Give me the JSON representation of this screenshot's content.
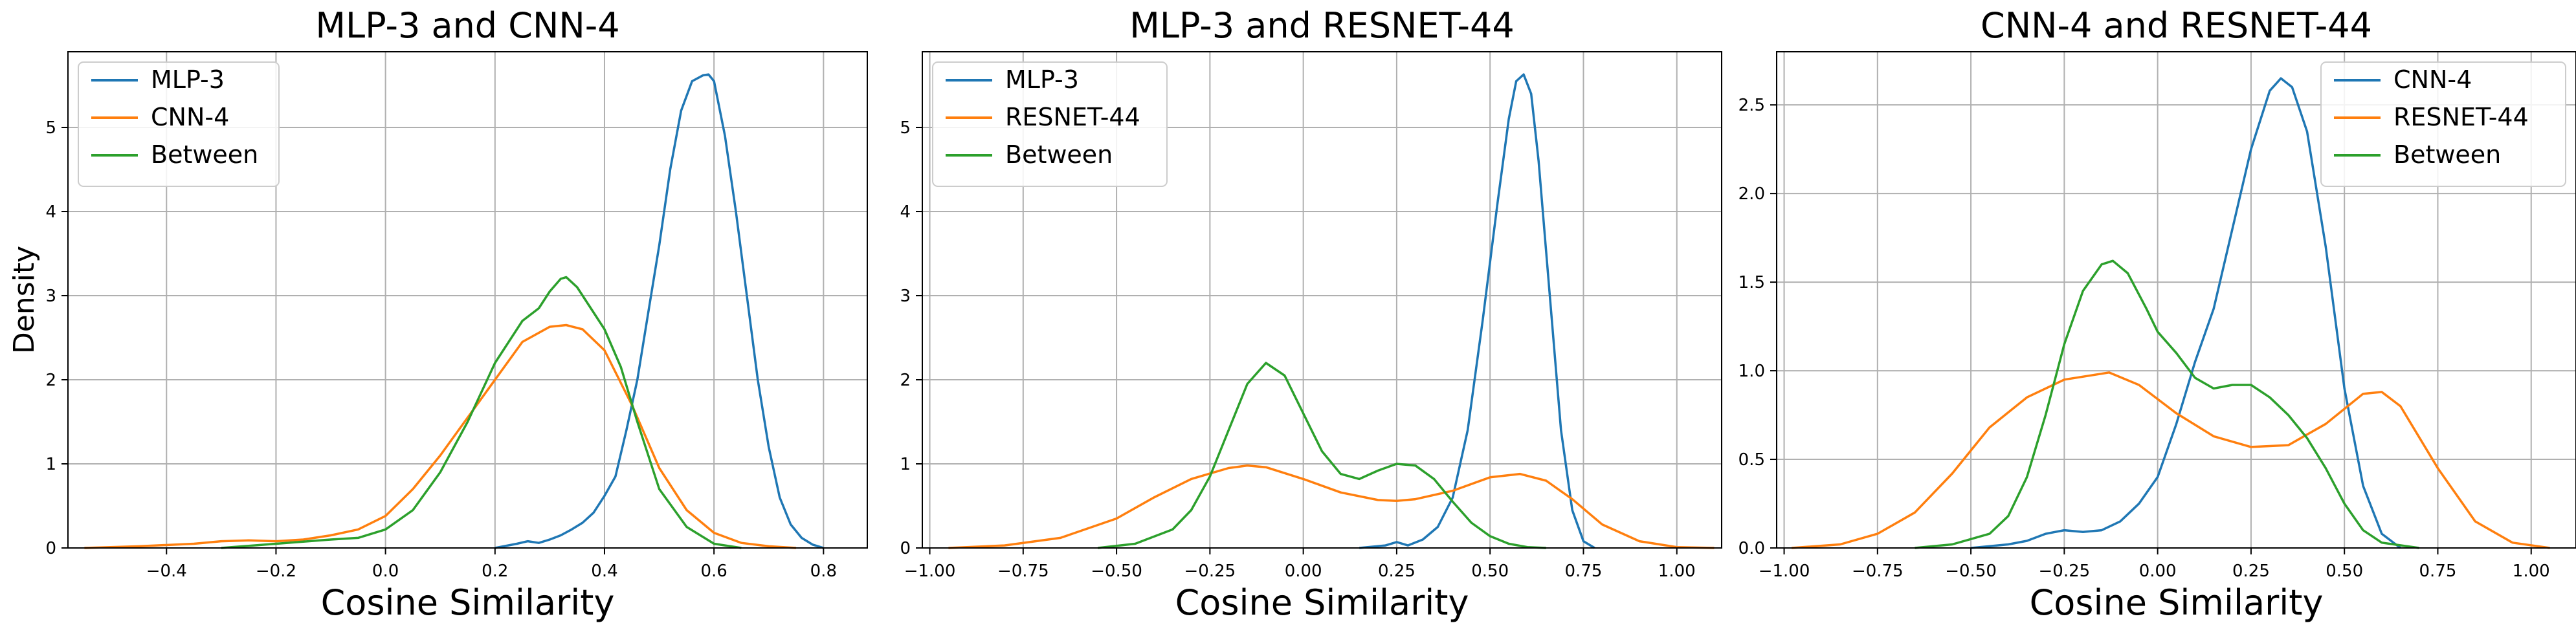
{
  "chart_data": [
    {
      "type": "line",
      "title": "MLP-3 and CNN-4",
      "xlabel": "Cosine Similarity",
      "ylabel": "Density",
      "xlim": [
        -0.58,
        0.88
      ],
      "ylim": [
        0,
        5.9
      ],
      "xticks": [
        -0.4,
        -0.2,
        0.0,
        0.2,
        0.4,
        0.6,
        0.8
      ],
      "xtick_labels": [
        "−0.4",
        "−0.2",
        "0.0",
        "0.2",
        "0.4",
        "0.6",
        "0.8"
      ],
      "yticks": [
        0,
        1,
        2,
        3,
        4,
        5
      ],
      "ytick_labels": [
        "0",
        "1",
        "2",
        "3",
        "4",
        "5"
      ],
      "grid": true,
      "legend_position": "top-left",
      "series": [
        {
          "name": "MLP-3",
          "color": "#1f77b4",
          "x": [
            0.2,
            0.24,
            0.26,
            0.28,
            0.3,
            0.32,
            0.34,
            0.36,
            0.38,
            0.4,
            0.42,
            0.44,
            0.46,
            0.48,
            0.5,
            0.52,
            0.54,
            0.56,
            0.58,
            0.59,
            0.6,
            0.62,
            0.64,
            0.66,
            0.68,
            0.7,
            0.72,
            0.74,
            0.76,
            0.78,
            0.8
          ],
          "y": [
            0.0,
            0.05,
            0.08,
            0.06,
            0.1,
            0.15,
            0.22,
            0.3,
            0.42,
            0.62,
            0.85,
            1.4,
            2.0,
            2.8,
            3.6,
            4.5,
            5.2,
            5.55,
            5.62,
            5.63,
            5.55,
            4.9,
            4.0,
            3.0,
            2.0,
            1.2,
            0.6,
            0.28,
            0.12,
            0.04,
            0.0
          ]
        },
        {
          "name": "CNN-4",
          "color": "#ff7f0e",
          "x": [
            -0.55,
            -0.45,
            -0.35,
            -0.3,
            -0.25,
            -0.2,
            -0.15,
            -0.1,
            -0.05,
            0.0,
            0.05,
            0.1,
            0.15,
            0.2,
            0.25,
            0.3,
            0.33,
            0.36,
            0.4,
            0.45,
            0.5,
            0.55,
            0.6,
            0.65,
            0.7,
            0.75
          ],
          "y": [
            0.0,
            0.02,
            0.05,
            0.08,
            0.09,
            0.08,
            0.1,
            0.15,
            0.22,
            0.38,
            0.7,
            1.1,
            1.55,
            2.0,
            2.45,
            2.63,
            2.65,
            2.6,
            2.35,
            1.7,
            0.95,
            0.45,
            0.18,
            0.06,
            0.02,
            0.0
          ]
        },
        {
          "name": "Between",
          "color": "#2ca02c",
          "x": [
            -0.3,
            -0.2,
            -0.1,
            -0.05,
            0.0,
            0.05,
            0.1,
            0.15,
            0.2,
            0.25,
            0.28,
            0.3,
            0.32,
            0.33,
            0.35,
            0.38,
            0.4,
            0.43,
            0.46,
            0.5,
            0.55,
            0.6,
            0.65
          ],
          "y": [
            0.0,
            0.05,
            0.1,
            0.12,
            0.22,
            0.45,
            0.9,
            1.5,
            2.2,
            2.7,
            2.85,
            3.05,
            3.2,
            3.22,
            3.1,
            2.8,
            2.6,
            2.15,
            1.5,
            0.7,
            0.25,
            0.05,
            0.0
          ]
        }
      ]
    },
    {
      "type": "line",
      "title": "MLP-3 and RESNET-44",
      "xlabel": "Cosine Similarity",
      "ylabel": "",
      "xlim": [
        -1.02,
        1.12
      ],
      "ylim": [
        0,
        5.9
      ],
      "xticks": [
        -1.0,
        -0.75,
        -0.5,
        -0.25,
        0.0,
        0.25,
        0.5,
        0.75,
        1.0
      ],
      "xtick_labels": [
        "−1.00",
        "−0.75",
        "−0.50",
        "−0.25",
        "0.00",
        "0.25",
        "0.50",
        "0.75",
        "1.00"
      ],
      "yticks": [
        0,
        1,
        2,
        3,
        4,
        5
      ],
      "ytick_labels": [
        "0",
        "1",
        "2",
        "3",
        "4",
        "5"
      ],
      "grid": true,
      "legend_position": "top-left",
      "series": [
        {
          "name": "MLP-3",
          "color": "#1f77b4",
          "x": [
            0.15,
            0.22,
            0.25,
            0.28,
            0.32,
            0.36,
            0.4,
            0.44,
            0.48,
            0.52,
            0.55,
            0.57,
            0.59,
            0.61,
            0.63,
            0.66,
            0.69,
            0.72,
            0.75,
            0.78
          ],
          "y": [
            0.0,
            0.03,
            0.07,
            0.03,
            0.1,
            0.25,
            0.6,
            1.4,
            2.7,
            4.1,
            5.1,
            5.55,
            5.63,
            5.4,
            4.6,
            3.0,
            1.4,
            0.45,
            0.08,
            0.0
          ]
        },
        {
          "name": "RESNET-44",
          "color": "#ff7f0e",
          "x": [
            -0.95,
            -0.8,
            -0.65,
            -0.5,
            -0.4,
            -0.3,
            -0.2,
            -0.15,
            -0.1,
            0.0,
            0.1,
            0.2,
            0.25,
            0.3,
            0.4,
            0.5,
            0.58,
            0.65,
            0.72,
            0.8,
            0.9,
            1.0,
            1.1
          ],
          "y": [
            0.0,
            0.03,
            0.12,
            0.35,
            0.6,
            0.82,
            0.95,
            0.98,
            0.96,
            0.82,
            0.66,
            0.57,
            0.56,
            0.58,
            0.68,
            0.84,
            0.88,
            0.8,
            0.58,
            0.28,
            0.08,
            0.01,
            0.0
          ]
        },
        {
          "name": "Between",
          "color": "#2ca02c",
          "x": [
            -0.55,
            -0.45,
            -0.35,
            -0.3,
            -0.25,
            -0.2,
            -0.15,
            -0.1,
            -0.05,
            0.0,
            0.05,
            0.1,
            0.15,
            0.2,
            0.25,
            0.3,
            0.35,
            0.4,
            0.45,
            0.5,
            0.55,
            0.6,
            0.65
          ],
          "y": [
            0.0,
            0.05,
            0.22,
            0.45,
            0.85,
            1.4,
            1.95,
            2.2,
            2.05,
            1.6,
            1.15,
            0.88,
            0.82,
            0.92,
            1.0,
            0.98,
            0.82,
            0.55,
            0.3,
            0.14,
            0.05,
            0.01,
            0.0
          ]
        }
      ]
    },
    {
      "type": "line",
      "title": "CNN-4 and RESNET-44",
      "xlabel": "Cosine Similarity",
      "ylabel": "",
      "xlim": [
        -1.02,
        1.12
      ],
      "ylim": [
        0,
        2.8
      ],
      "xticks": [
        -1.0,
        -0.75,
        -0.5,
        -0.25,
        0.0,
        0.25,
        0.5,
        0.75,
        1.0
      ],
      "xtick_labels": [
        "−1.00",
        "−0.75",
        "−0.50",
        "−0.25",
        "0.00",
        "0.25",
        "0.50",
        "0.75",
        "1.00"
      ],
      "yticks": [
        0.0,
        0.5,
        1.0,
        1.5,
        2.0,
        2.5
      ],
      "ytick_labels": [
        "0.0",
        "0.5",
        "1.0",
        "1.5",
        "2.0",
        "2.5"
      ],
      "grid": true,
      "legend_position": "top-right",
      "series": [
        {
          "name": "CNN-4",
          "color": "#1f77b4",
          "x": [
            -0.5,
            -0.4,
            -0.35,
            -0.3,
            -0.25,
            -0.2,
            -0.15,
            -0.1,
            -0.05,
            0.0,
            0.05,
            0.1,
            0.15,
            0.2,
            0.25,
            0.3,
            0.33,
            0.36,
            0.4,
            0.45,
            0.5,
            0.55,
            0.6,
            0.65
          ],
          "y": [
            0.0,
            0.02,
            0.04,
            0.08,
            0.1,
            0.09,
            0.1,
            0.15,
            0.25,
            0.4,
            0.7,
            1.05,
            1.35,
            1.8,
            2.25,
            2.58,
            2.65,
            2.6,
            2.35,
            1.7,
            0.9,
            0.35,
            0.08,
            0.0
          ]
        },
        {
          "name": "RESNET-44",
          "color": "#ff7f0e",
          "x": [
            -0.98,
            -0.85,
            -0.75,
            -0.65,
            -0.55,
            -0.45,
            -0.35,
            -0.25,
            -0.13,
            -0.05,
            0.05,
            0.15,
            0.25,
            0.35,
            0.45,
            0.55,
            0.6,
            0.65,
            0.75,
            0.85,
            0.95,
            1.05
          ],
          "y": [
            0.0,
            0.02,
            0.08,
            0.2,
            0.42,
            0.68,
            0.85,
            0.95,
            0.99,
            0.92,
            0.76,
            0.63,
            0.57,
            0.58,
            0.7,
            0.87,
            0.88,
            0.8,
            0.45,
            0.15,
            0.03,
            0.0
          ]
        },
        {
          "name": "Between",
          "color": "#2ca02c",
          "x": [
            -0.65,
            -0.55,
            -0.45,
            -0.4,
            -0.35,
            -0.3,
            -0.25,
            -0.2,
            -0.15,
            -0.12,
            -0.08,
            -0.03,
            0.0,
            0.05,
            0.1,
            0.15,
            0.2,
            0.25,
            0.3,
            0.35,
            0.4,
            0.45,
            0.5,
            0.55,
            0.6,
            0.7
          ],
          "y": [
            0.0,
            0.02,
            0.08,
            0.18,
            0.4,
            0.75,
            1.15,
            1.45,
            1.6,
            1.62,
            1.55,
            1.35,
            1.22,
            1.1,
            0.96,
            0.9,
            0.92,
            0.92,
            0.85,
            0.75,
            0.62,
            0.45,
            0.25,
            0.1,
            0.03,
            0.0
          ]
        }
      ]
    }
  ]
}
